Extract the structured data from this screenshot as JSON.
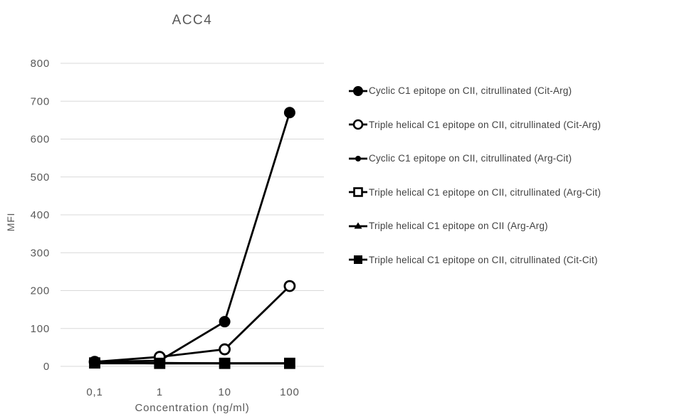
{
  "chart": {
    "title": "ACC4"
  },
  "chart_data": {
    "type": "line",
    "title": "ACC4",
    "xlabel": "Concentration (ng/ml)",
    "ylabel": "MFI",
    "x_scale": "log",
    "categories": [
      "0,1",
      "1",
      "10",
      "100"
    ],
    "x_values_ng_ml": [
      0.1,
      1,
      10,
      100
    ],
    "yticks": [
      0,
      100,
      200,
      300,
      400,
      500,
      600,
      700,
      800
    ],
    "ylim": [
      0,
      800
    ],
    "grid": "horizontal-only",
    "legend_position": "right",
    "series": [
      {
        "name": "Cyclic C1 epitope on CII, citrullinated (Cit-Arg)",
        "marker": "filled-circle-large",
        "color": "#000000",
        "values": [
          12,
          15,
          118,
          670
        ]
      },
      {
        "name": "Triple helical C1 epitope on CII, citrullinated (Cit-Arg)",
        "marker": "open-circle",
        "color": "#000000",
        "values": [
          12,
          25,
          45,
          212
        ]
      },
      {
        "name": "Cyclic C1 epitope on CII, citrullinated (Arg-Cit)",
        "marker": "filled-circle-small",
        "color": "#000000",
        "values": [
          10,
          9,
          8,
          8
        ]
      },
      {
        "name": "Triple helical C1 epitope on CII, citrullinated (Arg-Cit)",
        "marker": "open-square",
        "color": "#000000",
        "values": [
          9,
          8,
          8,
          8
        ]
      },
      {
        "name": "Triple helical C1 epitope on CII (Arg-Arg)",
        "marker": "filled-triangle",
        "color": "#000000",
        "values": [
          9,
          8,
          8,
          8
        ]
      },
      {
        "name": "Triple helical C1 epitope on CII, citrullinated (Cit-Cit)",
        "marker": "filled-square",
        "color": "#000000",
        "values": [
          8,
          8,
          8,
          8
        ]
      }
    ],
    "colors": {
      "series_stroke": "#000000",
      "gridline": "#d9d9d9",
      "axis_text": "#595959",
      "legend_text": "#424242",
      "background": "#ffffff"
    }
  }
}
